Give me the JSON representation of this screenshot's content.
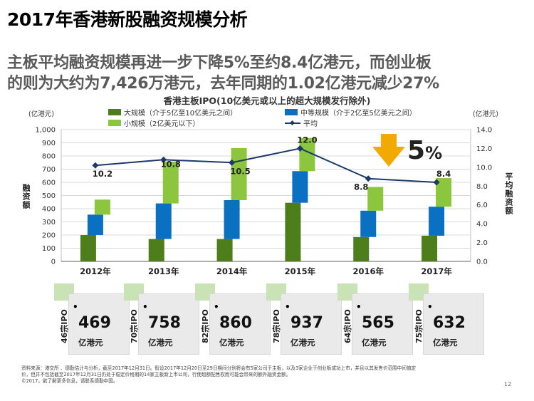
{
  "slide": {
    "title": "2017年香港新股融资规模分析",
    "subtitle_line1": "主板平均融资规模再进一步下降5%至约8.4亿港元，而创业板",
    "subtitle_line2": "的则为大约为7,426万港元，去年同期的1.02亿港元减少27%",
    "highlight_value": "5",
    "highlight_unit": "%",
    "footer_line1": "资料来源：港交所 、德勤估计与分析，截至2017年12月31日。假设2017年12月20日至29日期间分别将会有5家公司于主板，以及3家企业于创业板成功上市，并且以其发售价范围中间值定",
    "footer_line2": "价，但并不包括截至2017年12月31日仍处于稳定价格期的14家主板新上市公司，行使超额配售权而可能会带来的额外融资金额。",
    "footer_line3": "©2017。欲了解更多信息，请联系德勤中国。",
    "page_number": "12"
  },
  "chart_data": {
    "type": "bar",
    "stacked": true,
    "title": "香港主板IPO(10亿美元或以上的超大规模发行除外)",
    "y_left_unit": "(亿港元)",
    "y_right_unit": "(亿港元)",
    "ylabel_left": "融资额",
    "ylabel_right": "平均融资额",
    "ylim": [
      0,
      1000
    ],
    "y_ticks": [
      0,
      100,
      200,
      300,
      400,
      500,
      600,
      700,
      800,
      900,
      1000
    ],
    "y_tick_labels": [
      "0",
      "100",
      "200",
      "300",
      "400",
      "500",
      "600",
      "700",
      "800",
      "900",
      "1,000"
    ],
    "y2lim": [
      0,
      14
    ],
    "y2_ticks": [
      0,
      2,
      4,
      6,
      8,
      10,
      12,
      14
    ],
    "y2_tick_labels": [
      "0.0",
      "2.0",
      "4.0",
      "6.0",
      "8.0",
      "10.0",
      "12.0",
      "14.0"
    ],
    "categories": [
      "2012年",
      "2013年",
      "2014年",
      "2015年",
      "2016年",
      "2017年"
    ],
    "series": [
      {
        "name": "大规模（介于5亿至10亿美元之间）",
        "color": "#4e7d1c",
        "values": [
          200,
          170,
          170,
          445,
          185,
          195
        ]
      },
      {
        "name": "中等规模（介于2亿至5亿美元之间）",
        "color": "#0a70c2",
        "values": [
          155,
          270,
          295,
          240,
          200,
          220
        ]
      },
      {
        "name": "小规模（2亿美元以下）",
        "color": "#8cc63f",
        "values": [
          114,
          318,
          395,
          252,
          180,
          217
        ]
      }
    ],
    "line_series": {
      "name": "平均",
      "color": "#1b3a6b",
      "values": [
        10.2,
        10.8,
        10.5,
        12.0,
        8.8,
        8.4
      ],
      "labels": [
        "10.2",
        "10.8",
        "10.5",
        "12.0",
        "8.8",
        "8.4"
      ]
    },
    "grid": true
  },
  "cards": [
    {
      "count": "46宗IPO",
      "value": "469",
      "unit": "亿港元"
    },
    {
      "count": "70宗IPO",
      "value": "758",
      "unit": "亿港元"
    },
    {
      "count": "82宗IPO",
      "value": "860",
      "unit": "亿港元"
    },
    {
      "count": "78宗IPO",
      "value": "937",
      "unit": "亿港元"
    },
    {
      "count": "64宗IPO",
      "value": "565",
      "unit": "亿港元"
    },
    {
      "count": "75宗IPO",
      "value": "632",
      "unit": "亿港元"
    }
  ],
  "bullet": "•",
  "colors": {
    "arrow": "#f2a900",
    "card_bg": "#eaeaea",
    "card_tab": "#c9e3b6",
    "grid": "#d9d9d9"
  }
}
